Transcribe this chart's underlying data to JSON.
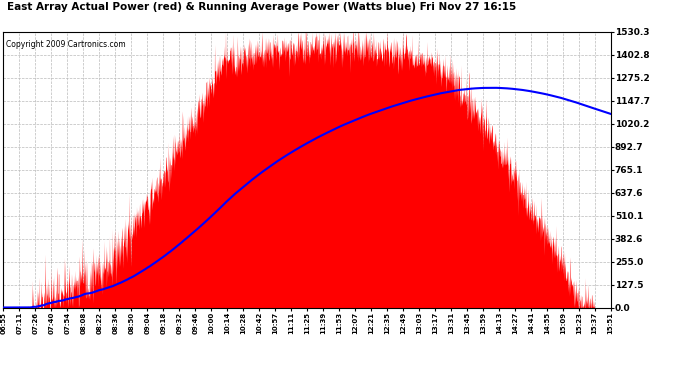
{
  "title": "East Array Actual Power (red) & Running Average Power (Watts blue) Fri Nov 27 16:15",
  "copyright": "Copyright 2009 Cartronics.com",
  "bg_color": "#ffffff",
  "plot_bg_color": "#ffffff",
  "grid_color": "#bbbbbb",
  "actual_color": "#ff0000",
  "avg_color": "#0000ff",
  "yticks": [
    0.0,
    127.5,
    255.0,
    382.6,
    510.1,
    637.6,
    765.1,
    892.7,
    1020.2,
    1147.7,
    1275.2,
    1402.8,
    1530.3
  ],
  "ymax": 1530.3,
  "ymin": 0.0,
  "x_labels": [
    "06:55",
    "07:11",
    "07:26",
    "07:40",
    "07:54",
    "08:08",
    "08:22",
    "08:36",
    "08:50",
    "09:04",
    "09:18",
    "09:32",
    "09:46",
    "10:00",
    "10:14",
    "10:28",
    "10:42",
    "10:57",
    "11:11",
    "11:25",
    "11:39",
    "11:53",
    "12:07",
    "12:21",
    "12:35",
    "12:49",
    "13:03",
    "13:17",
    "13:31",
    "13:45",
    "13:59",
    "14:13",
    "14:27",
    "14:41",
    "14:55",
    "15:09",
    "15:23",
    "15:37",
    "15:51"
  ],
  "fig_width": 6.9,
  "fig_height": 3.75,
  "dpi": 100
}
